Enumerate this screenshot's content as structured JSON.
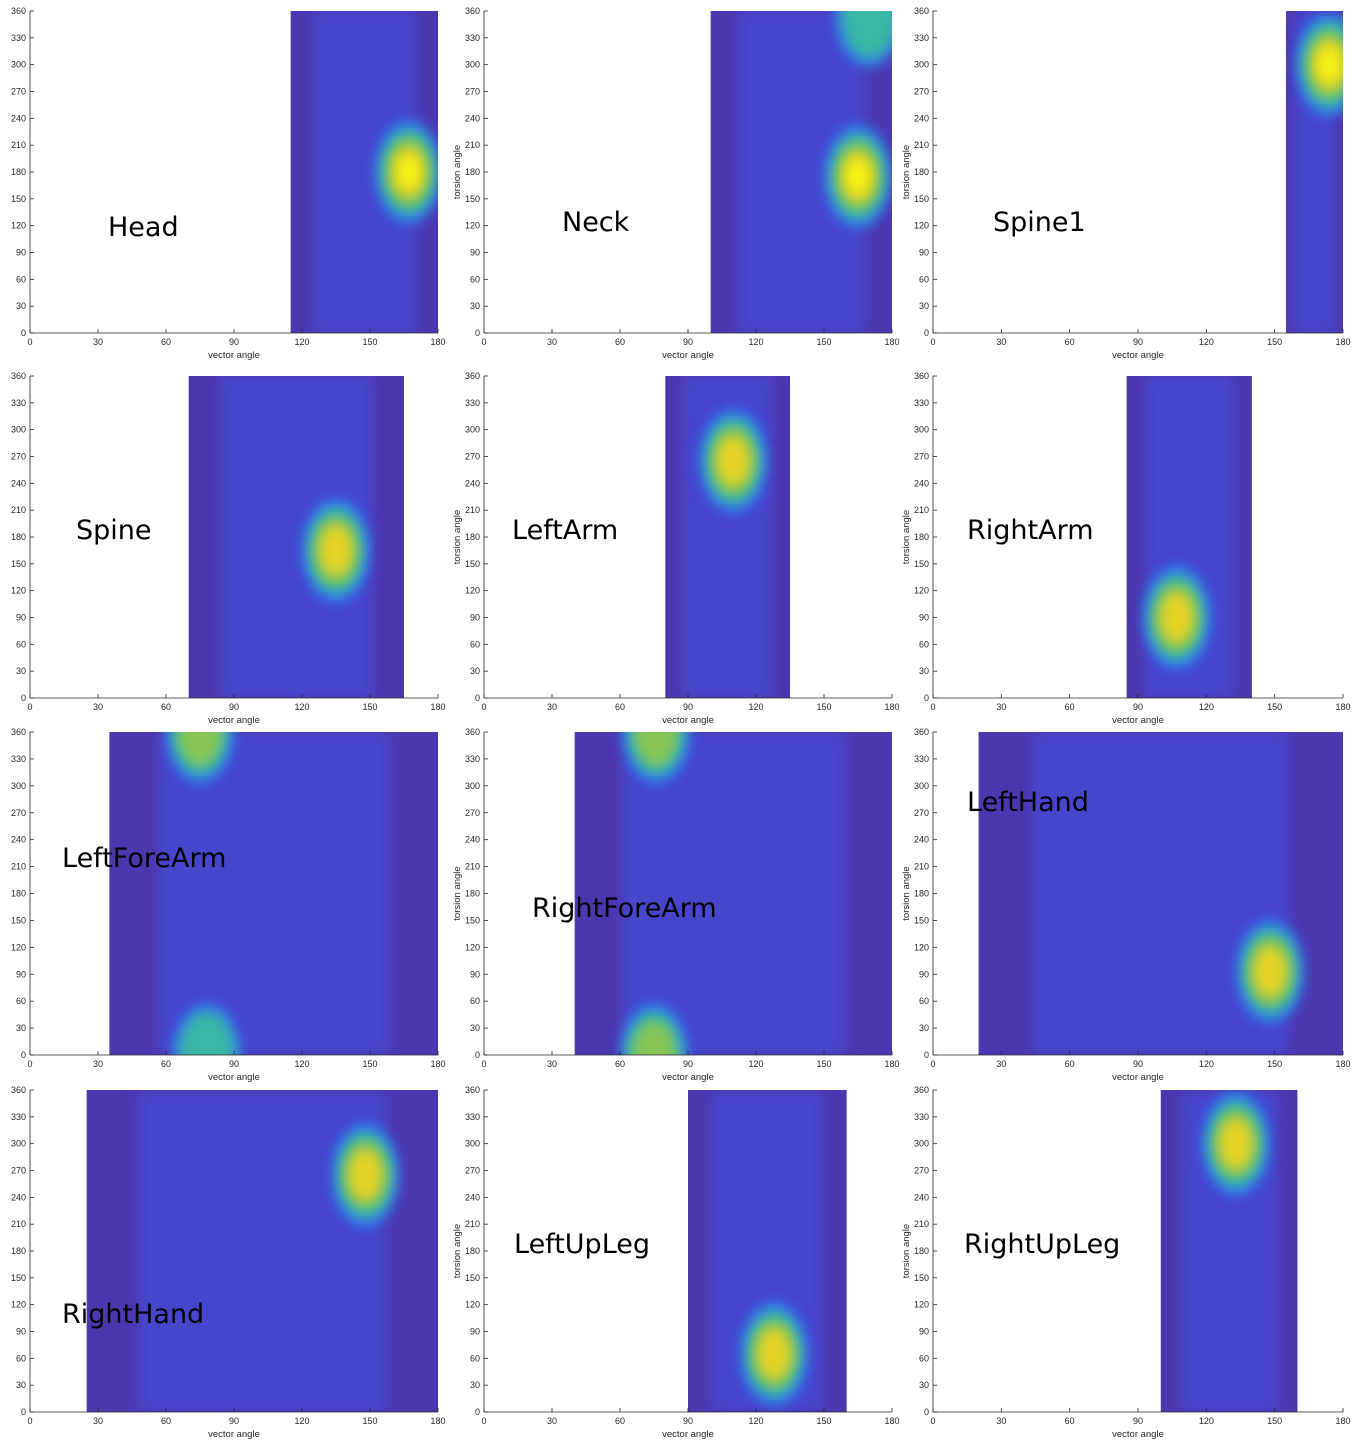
{
  "figure": {
    "colormap": [
      "#3e26a8",
      "#4353e6",
      "#2a84f2",
      "#13b1d7",
      "#3ec29a",
      "#95c84a",
      "#e7b923",
      "#f5d51b",
      "#f9fb0e"
    ],
    "background": "#ffffff"
  },
  "chart_data": [
    {
      "type": "heatmap",
      "name": "Head",
      "xlabel": "vector angle",
      "ylabel": "",
      "xlim": [
        0,
        180
      ],
      "ylim": [
        0,
        360
      ],
      "xticks": [
        0,
        30,
        60,
        90,
        120,
        150,
        180
      ],
      "yticks": [
        0,
        30,
        60,
        90,
        120,
        150,
        180,
        210,
        240,
        270,
        300,
        330,
        360
      ],
      "density_extent_x": [
        115,
        180
      ],
      "peaks": [
        {
          "x": 167,
          "y": 180,
          "level": 1.0
        }
      ]
    },
    {
      "type": "heatmap",
      "name": "Neck",
      "xlabel": "vector angle",
      "ylabel": "torsion angle",
      "xlim": [
        0,
        180
      ],
      "ylim": [
        0,
        360
      ],
      "xticks": [
        0,
        30,
        60,
        90,
        120,
        150,
        180
      ],
      "yticks": [
        0,
        30,
        60,
        90,
        120,
        150,
        180,
        210,
        240,
        270,
        300,
        330,
        360
      ],
      "density_extent_x": [
        100,
        180
      ],
      "peaks": [
        {
          "x": 165,
          "y": 175,
          "level": 1.0
        },
        {
          "x": 170,
          "y": 355,
          "level": 0.45
        }
      ]
    },
    {
      "type": "heatmap",
      "name": "Spine1",
      "xlabel": "vector angle",
      "ylabel": "torsion angle",
      "xlim": [
        0,
        180
      ],
      "ylim": [
        0,
        360
      ],
      "xticks": [
        0,
        30,
        60,
        90,
        120,
        150,
        180
      ],
      "yticks": [
        0,
        30,
        60,
        90,
        120,
        150,
        180,
        210,
        240,
        270,
        300,
        330,
        360
      ],
      "density_extent_x": [
        155,
        180
      ],
      "peaks": [
        {
          "x": 174,
          "y": 300,
          "level": 1.0
        }
      ]
    },
    {
      "type": "heatmap",
      "name": "Spine",
      "xlabel": "vector angle",
      "ylabel": "",
      "xlim": [
        0,
        180
      ],
      "ylim": [
        0,
        360
      ],
      "xticks": [
        0,
        30,
        60,
        90,
        120,
        150,
        180
      ],
      "yticks": [
        0,
        30,
        60,
        90,
        120,
        150,
        180,
        210,
        240,
        270,
        300,
        330,
        360
      ],
      "density_extent_x": [
        70,
        165
      ],
      "peaks": [
        {
          "x": 135,
          "y": 165,
          "level": 0.85
        }
      ]
    },
    {
      "type": "heatmap",
      "name": "LeftArm",
      "xlabel": "vector angle",
      "ylabel": "torsion angle",
      "xlim": [
        0,
        180
      ],
      "ylim": [
        0,
        360
      ],
      "xticks": [
        0,
        30,
        60,
        90,
        120,
        150,
        180
      ],
      "yticks": [
        0,
        30,
        60,
        90,
        120,
        150,
        180,
        210,
        240,
        270,
        300,
        330,
        360
      ],
      "density_extent_x": [
        80,
        135
      ],
      "peaks": [
        {
          "x": 110,
          "y": 265,
          "level": 0.9
        }
      ]
    },
    {
      "type": "heatmap",
      "name": "RightArm",
      "xlabel": "vector angle",
      "ylabel": "torsion angle",
      "xlim": [
        0,
        180
      ],
      "ylim": [
        0,
        360
      ],
      "xticks": [
        0,
        30,
        60,
        90,
        120,
        150,
        180
      ],
      "yticks": [
        0,
        30,
        60,
        90,
        120,
        150,
        180,
        210,
        240,
        270,
        300,
        330,
        360
      ],
      "density_extent_x": [
        85,
        140
      ],
      "peaks": [
        {
          "x": 107,
          "y": 90,
          "level": 0.9
        }
      ]
    },
    {
      "type": "heatmap",
      "name": "LeftForeArm",
      "xlabel": "vector angle",
      "ylabel": "",
      "xlim": [
        0,
        180
      ],
      "ylim": [
        0,
        360
      ],
      "xticks": [
        0,
        30,
        60,
        90,
        120,
        150,
        180
      ],
      "yticks": [
        0,
        30,
        60,
        90,
        120,
        150,
        180,
        210,
        240,
        270,
        300,
        330,
        360
      ],
      "density_extent_x": [
        35,
        180
      ],
      "peaks": [
        {
          "x": 75,
          "y": 360,
          "level": 0.75
        },
        {
          "x": 78,
          "y": 0,
          "level": 0.55
        }
      ]
    },
    {
      "type": "heatmap",
      "name": "RightForeArm",
      "xlabel": "vector angle",
      "ylabel": "torsion angle",
      "xlim": [
        0,
        180
      ],
      "ylim": [
        0,
        360
      ],
      "xticks": [
        0,
        30,
        60,
        90,
        120,
        150,
        180
      ],
      "yticks": [
        0,
        30,
        60,
        90,
        120,
        150,
        180,
        210,
        240,
        270,
        300,
        330,
        360
      ],
      "density_extent_x": [
        40,
        180
      ],
      "peaks": [
        {
          "x": 76,
          "y": 360,
          "level": 0.7
        },
        {
          "x": 75,
          "y": 0,
          "level": 0.75
        }
      ]
    },
    {
      "type": "heatmap",
      "name": "LeftHand",
      "xlabel": "vector angle",
      "ylabel": "torsion angle",
      "xlim": [
        0,
        180
      ],
      "ylim": [
        0,
        360
      ],
      "xticks": [
        0,
        30,
        60,
        90,
        120,
        150,
        180
      ],
      "yticks": [
        0,
        30,
        60,
        90,
        120,
        150,
        180,
        210,
        240,
        270,
        300,
        330,
        360
      ],
      "density_extent_x": [
        20,
        180
      ],
      "peaks": [
        {
          "x": 148,
          "y": 93,
          "level": 0.9
        }
      ]
    },
    {
      "type": "heatmap",
      "name": "RightHand",
      "xlabel": "vector angle",
      "ylabel": "",
      "xlim": [
        0,
        180
      ],
      "ylim": [
        0,
        360
      ],
      "xticks": [
        0,
        30,
        60,
        90,
        120,
        150,
        180
      ],
      "yticks": [
        0,
        30,
        60,
        90,
        120,
        150,
        180,
        210,
        240,
        270,
        300,
        330,
        360
      ],
      "density_extent_x": [
        25,
        180
      ],
      "peaks": [
        {
          "x": 148,
          "y": 265,
          "level": 0.95
        }
      ]
    },
    {
      "type": "heatmap",
      "name": "LeftUpLeg",
      "xlabel": "vector angle",
      "ylabel": "torsion angle",
      "xlim": [
        0,
        180
      ],
      "ylim": [
        0,
        360
      ],
      "xticks": [
        0,
        30,
        60,
        90,
        120,
        150,
        180
      ],
      "yticks": [
        0,
        30,
        60,
        90,
        120,
        150,
        180,
        210,
        240,
        270,
        300,
        330,
        360
      ],
      "density_extent_x": [
        90,
        160
      ],
      "peaks": [
        {
          "x": 128,
          "y": 65,
          "level": 0.95
        }
      ]
    },
    {
      "type": "heatmap",
      "name": "RightUpLeg",
      "xlabel": "vector angle",
      "ylabel": "torsion angle",
      "xlim": [
        0,
        180
      ],
      "ylim": [
        0,
        360
      ],
      "xticks": [
        0,
        30,
        60,
        90,
        120,
        150,
        180
      ],
      "yticks": [
        0,
        30,
        60,
        90,
        120,
        150,
        180,
        210,
        240,
        270,
        300,
        330,
        360
      ],
      "density_extent_x": [
        100,
        160
      ],
      "peaks": [
        {
          "x": 133,
          "y": 300,
          "level": 0.95
        }
      ]
    }
  ]
}
